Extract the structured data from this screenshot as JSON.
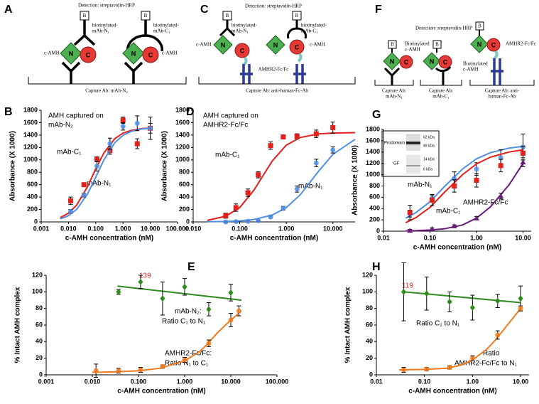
{
  "panel_labels": [
    "A",
    "B",
    "C",
    "D",
    "E",
    "F",
    "G",
    "H"
  ],
  "diagrams": [
    {
      "detection": "Detection: streptavidin-HRP",
      "labels": [
        "B",
        "B",
        "biotinylated-",
        "mAb-N₁",
        "biotinylated-",
        "mAb-C₁",
        "c-AMH",
        "c-AMH",
        "N",
        "C",
        "N",
        "C",
        "Capture Ab: mAb-N₂"
      ]
    },
    {
      "detection": "Detection: streptavidin-HRP",
      "labels": [
        "B",
        "B",
        "biotinylated-",
        "mAb-N₁",
        "biotinylated-",
        "mAb-C₁",
        "c-AMH",
        "c-AMH",
        "N",
        "C",
        "N",
        "C",
        "AMHR2-Fc/Fc",
        "Capture Ab: anti-human-Fc-Ab"
      ]
    },
    {
      "detection": "Detection: streptavidin-HRP",
      "labels": [
        "B",
        "B",
        "B",
        "Biotinylated",
        "c-AMH",
        "Biotinylated",
        "c-AMH",
        "AMHR2-Fc/Fc",
        "N",
        "C",
        "N",
        "C",
        "N",
        "C",
        "Capture Ab:",
        "mAb-N₁",
        "Capture Ab:",
        "mAb-C₁",
        "Capture Ab: anti-",
        "human-Fc-Ab"
      ]
    }
  ],
  "chart_data": [
    {
      "type": "scatter",
      "xlog": true,
      "ylabel": "Absorbance (X 1000)",
      "xlabel": "c-AMH concentration (nM)",
      "xlim": [
        0.001,
        100
      ],
      "xticks": [
        0.001,
        {
          "value": 0.01,
          "label": "0.010"
        },
        {
          "value": 0.1,
          "label": "0.100"
        },
        {
          "value": 1,
          "label": "1.000"
        },
        {
          "value": 10,
          "label": "10.000"
        },
        {
          "value": 100,
          "label": "100.000"
        }
      ],
      "ylim": [
        0,
        1800
      ],
      "yticks": [
        0,
        200,
        400,
        600,
        800,
        1000,
        1200,
        1400,
        1600,
        1800
      ],
      "annotations": [
        "AMH captured on",
        "mAb-N₂"
      ],
      "x": [
        0.012,
        0.037,
        0.111,
        0.333,
        1,
        3.33,
        10
      ],
      "series": [
        {
          "name": "mAb-C₁",
          "color": "#e3201b",
          "marker": "square",
          "values": [
            340,
            600,
            1010,
            1150,
            1640,
            1260,
            1510
          ],
          "errors": [
            60,
            20,
            40,
            60,
            50,
            80,
            180
          ],
          "fit": {
            "x": [
              0.005,
              0.01,
              0.02,
              0.05,
              0.1,
              0.2,
              0.5,
              1,
              2,
              5,
              10
            ],
            "values": [
              69,
              141,
              272,
              566,
              855,
              1113,
              1341,
              1431,
              1476,
              1504,
              1512
            ]
          }
        },
        {
          "name": "mAb-N₁",
          "color": "#4f8fe6",
          "marker": "circle",
          "values": [
            170,
            430,
            900,
            1260,
            1540,
            1590,
            1510
          ],
          "errors": [
            30,
            30,
            80,
            90,
            60,
            120,
            80
          ],
          "fit": {
            "x": [
              0.005,
              0.01,
              0.02,
              0.05,
              0.1,
              0.2,
              0.5,
              1,
              2,
              5,
              10
            ],
            "values": [
              49,
              101,
              203,
              450,
              720,
              1001,
              1277,
              1397,
              1460,
              1498,
              1507
            ]
          }
        }
      ]
    },
    {
      "type": "scatter",
      "xlog": true,
      "ylabel": "Absorbance (X 1000)",
      "xlabel": "c-AMH concentration (nM)",
      "xlim": [
        0.01,
        30
      ],
      "xticks": [
        {
          "value": 0.01,
          "label": "0.010"
        },
        {
          "value": 0.1,
          "label": "0.100"
        },
        {
          "value": 1,
          "label": "1.000"
        },
        {
          "value": 10,
          "label": "10.000"
        }
      ],
      "ylim": [
        0,
        1800
      ],
      "yticks": [
        0,
        200,
        400,
        600,
        800,
        1000,
        1200,
        1400,
        1600,
        1800
      ],
      "annotations": [
        "AMH captured on",
        "AMHR2-Fc/Fc"
      ],
      "x": [
        0.05,
        0.083,
        0.15,
        0.25,
        0.46,
        0.86,
        1.7,
        4.4,
        10
      ],
      "series": [
        {
          "name": "mAb-C₁",
          "color": "#e3201b",
          "marker": "square",
          "values": [
            100,
            230,
            470,
            760,
            1230,
            1370,
            1380,
            1420,
            1520
          ],
          "errors": [
            40,
            60,
            60,
            50,
            60,
            30,
            40,
            60,
            90
          ],
          "fit": {
            "x": [
              0.02,
              0.05,
              0.1,
              0.2,
              0.5,
              1,
              2,
              5,
              10,
              30
            ],
            "values": [
              24,
              92,
              232,
              507,
              983,
              1237,
              1361,
              1419,
              1432,
              1439
            ]
          }
        },
        {
          "name": "mAb-N₁",
          "color": "#4f8fe6",
          "marker": "circle",
          "values": [
            0,
            5,
            10,
            20,
            80,
            220,
            530,
            950,
            1160
          ],
          "errors": [
            10,
            10,
            10,
            10,
            20,
            30,
            50,
            60,
            50
          ],
          "fit": {
            "x": [
              0.02,
              0.05,
              0.1,
              0.2,
              0.5,
              1,
              2,
              5,
              10,
              30
            ],
            "values": [
              3,
              7,
              17,
              39,
              111,
              230,
              439,
              822,
              1088,
              1331
            ]
          }
        }
      ]
    },
    {
      "type": "scatter",
      "xlog": true,
      "ylabel": "Absorbance (X 1000)",
      "xlabel": "c-AMH concentration (nM)",
      "xlim": [
        0.01,
        15
      ],
      "xticks": [
        0.01,
        {
          "value": 0.1,
          "label": "0.10"
        },
        {
          "value": 1,
          "label": "1.00"
        },
        {
          "value": 10,
          "label": "10.00"
        }
      ],
      "ylim": [
        0,
        1800
      ],
      "yticks": [
        0,
        200,
        400,
        600,
        800,
        1000,
        1200,
        1400,
        1600,
        1800
      ],
      "inset": [
        "Prodomain",
        "62 kDa",
        "49 kDa",
        "GF",
        "14 kDa",
        "6 kDa"
      ],
      "x": [
        0.037,
        0.111,
        0.333,
        1,
        3.33,
        10
      ],
      "series": [
        {
          "name": "mAb-N₁",
          "color": "#4f8fe6",
          "marker": "circle",
          "values": [
            310,
            580,
            930,
            1100,
            1300,
            1490
          ],
          "errors": [
            60,
            60,
            120,
            110,
            140,
            230
          ],
          "fit": {
            "x": [
              0.03,
              0.05,
              0.1,
              0.2,
              0.5,
              1,
              2,
              5,
              10
            ],
            "values": [
              230,
              330,
              520,
              780,
              1100,
              1280,
              1390,
              1470,
              1500
            ]
          }
        },
        {
          "name": "mAb-C₁",
          "color": "#e3201b",
          "marker": "square",
          "values": [
            330,
            550,
            800,
            900,
            1160,
            1380
          ],
          "errors": [
            130,
            100,
            110,
            120,
            110,
            120
          ],
          "fit": {
            "x": [
              0.03,
              0.05,
              0.1,
              0.2,
              0.5,
              1,
              2,
              5,
              10
            ],
            "values": [
              150,
              240,
              420,
              680,
              1000,
              1190,
              1310,
              1400,
              1440
            ]
          }
        },
        {
          "name": "AMHR2-Fc/Fc",
          "color": "#6a1b7a",
          "marker": "triangle",
          "values": [
            10,
            40,
            90,
            230,
            620,
            1220
          ],
          "errors": [
            20,
            20,
            20,
            30,
            50,
            80
          ],
          "fit": {
            "x": [
              0.03,
              0.05,
              0.1,
              0.2,
              0.5,
              1,
              2,
              5,
              10
            ],
            "values": [
              5,
              10,
              20,
              40,
              110,
              230,
              430,
              820,
              1200
            ]
          }
        }
      ]
    },
    {
      "type": "scatter",
      "xlog": true,
      "ylabel": "% Intact AMH complex",
      "xlabel": "c-AMH concentration (nM)",
      "xlim": [
        0.001,
        100
      ],
      "xticks": [
        0.001,
        {
          "value": 0.01,
          "label": "0.010"
        },
        {
          "value": 0.1,
          "label": "0.100"
        },
        {
          "value": 1,
          "label": "1.000"
        },
        {
          "value": 10,
          "label": "10.000"
        },
        {
          "value": 100,
          "label": "100.000"
        }
      ],
      "ylim": [
        0,
        120
      ],
      "yticks": [
        0,
        20,
        40,
        60,
        80,
        100,
        120
      ],
      "annotations": [
        "139",
        "mAb-N₂:",
        "Ratio C₁ to N₁",
        "AMHR2-Fc/Fc:",
        "Ratio N₁ to C₁"
      ],
      "series": [
        {
          "color": "#2e8b1e",
          "marker": "diamond",
          "x": [
            0.037,
            0.111,
            0.333,
            1,
            3.33,
            10
          ],
          "values": [
            100,
            112,
            92,
            106,
            79,
            99
          ],
          "errors": [
            3,
            8,
            20,
            10,
            8,
            10
          ],
          "fit": {
            "x": [
              0.035,
              17
            ],
            "values": [
              107,
              90
            ]
          }
        },
        {
          "color": "#f07a1e",
          "marker": "circle",
          "x": [
            0.012,
            0.037,
            0.111,
            0.333,
            1,
            3.33,
            10,
            15
          ],
          "values": [
            5,
            5,
            6,
            10,
            18,
            38,
            66,
            77
          ],
          "errors": [
            8,
            3,
            3,
            2,
            3,
            4,
            8,
            6
          ],
          "fit": {
            "x": [
              0.01,
              0.03,
              0.1,
              0.3,
              1,
              2,
              3,
              5,
              10,
              17
            ],
            "values": [
              3,
              3.5,
              5,
              8,
              17,
              27,
              36,
              50,
              66,
              77
            ]
          }
        }
      ]
    },
    {
      "type": "scatter",
      "xlog": true,
      "ylabel": "% Intact AMH complex",
      "xlabel": "c-AMH concentration (nM)",
      "xlim": [
        0.01,
        15
      ],
      "xticks": [
        0.01,
        {
          "value": 0.1,
          "label": "0.10"
        },
        {
          "value": 1,
          "label": "1.00"
        },
        {
          "value": 10,
          "label": "10.00"
        }
      ],
      "ylim": [
        0,
        120
      ],
      "yticks": [
        0,
        20,
        40,
        60,
        80,
        100,
        120
      ],
      "annotations": [
        "119",
        "Ratio C₁ to N₁",
        "Ratio",
        "AMHR2-Fc/Fc to N₁"
      ],
      "x": [
        0.037,
        0.111,
        0.333,
        1,
        3.33,
        10
      ],
      "series": [
        {
          "color": "#2e8b1e",
          "marker": "diamond",
          "values": [
            100,
            98,
            88,
            81,
            89,
            92
          ],
          "errors": [
            35,
            20,
            12,
            15,
            8,
            15
          ],
          "fit": {
            "x": [
              0.037,
              10
            ],
            "values": [
              100,
              87
            ]
          }
        },
        {
          "color": "#f07a1e",
          "marker": "circle",
          "values": [
            6,
            7,
            9,
            20,
            48,
            80
          ],
          "errors": [
            3,
            2,
            2,
            3,
            5,
            3
          ],
          "fit": {
            "x": [
              0.03,
              0.1,
              0.3,
              0.6,
              1,
              2,
              3,
              5,
              10
            ],
            "values": [
              6,
              6.5,
              8,
              12,
              18,
              31,
              42,
              58,
              80
            ]
          }
        }
      ]
    }
  ]
}
